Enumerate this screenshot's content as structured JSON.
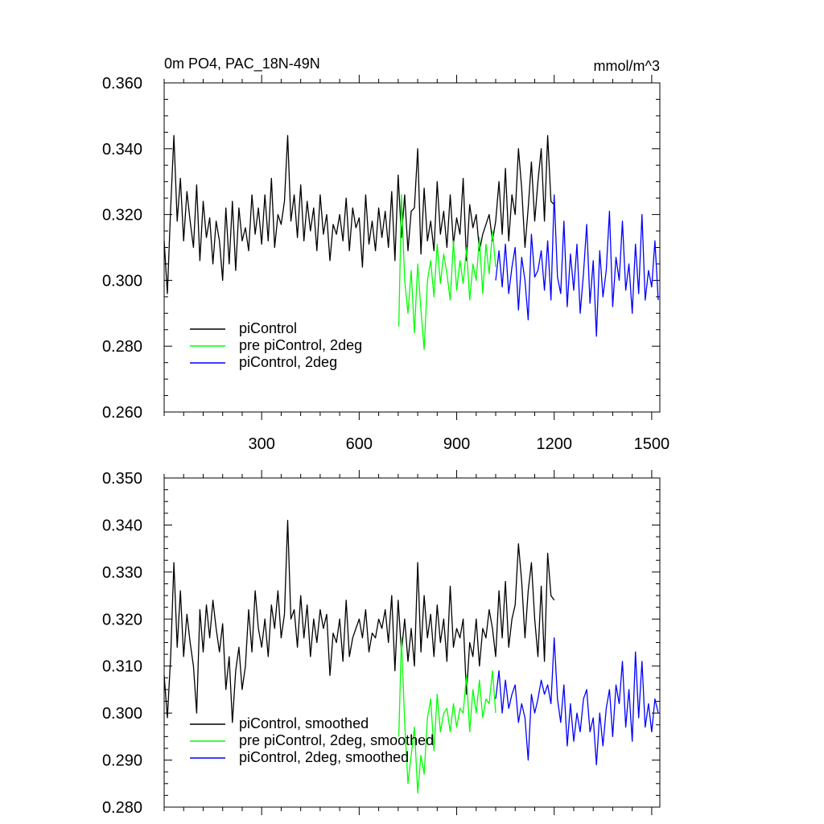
{
  "chart_data": [
    {
      "type": "line",
      "title": "0m PO4, PAC_18N-49N",
      "units": "mmol/m^3",
      "xlim": [
        0,
        1525
      ],
      "ylim": [
        0.26,
        0.36
      ],
      "xticks": [
        300,
        600,
        900,
        1200,
        1500
      ],
      "xtick_labels": [
        "300",
        "600",
        "900",
        "1200",
        "1500"
      ],
      "yticks": [
        0.26,
        0.28,
        0.3,
        0.32,
        0.34,
        0.36
      ],
      "ytick_labels": [
        "0.260",
        "0.280",
        "0.300",
        "0.320",
        "0.340",
        "0.360"
      ],
      "legend": {
        "placement": "bottom-left"
      },
      "series": [
        {
          "name": "piControl",
          "color": "#000000",
          "x": [
            0,
            10,
            20,
            30,
            40,
            50,
            60,
            70,
            80,
            90,
            100,
            110,
            120,
            130,
            140,
            150,
            160,
            170,
            180,
            190,
            200,
            210,
            220,
            230,
            240,
            250,
            260,
            270,
            280,
            290,
            300,
            310,
            320,
            330,
            340,
            350,
            360,
            370,
            380,
            390,
            400,
            410,
            420,
            430,
            440,
            450,
            460,
            470,
            480,
            490,
            500,
            510,
            520,
            530,
            540,
            550,
            560,
            570,
            580,
            590,
            600,
            610,
            620,
            630,
            640,
            650,
            660,
            670,
            680,
            690,
            700,
            710,
            720,
            730,
            740,
            750,
            760,
            770,
            780,
            790,
            800,
            810,
            820,
            830,
            840,
            850,
            860,
            870,
            880,
            890,
            900,
            910,
            920,
            930,
            940,
            950,
            960,
            970,
            980,
            990,
            1000,
            1010,
            1020,
            1030,
            1040,
            1050,
            1060,
            1070,
            1080,
            1090,
            1100,
            1110,
            1120,
            1130,
            1140,
            1150,
            1160,
            1170,
            1180,
            1190,
            1200
          ],
          "y": [
            0.312,
            0.296,
            0.322,
            0.344,
            0.318,
            0.331,
            0.312,
            0.327,
            0.318,
            0.31,
            0.329,
            0.306,
            0.324,
            0.313,
            0.319,
            0.305,
            0.318,
            0.312,
            0.3,
            0.322,
            0.305,
            0.324,
            0.303,
            0.322,
            0.312,
            0.316,
            0.309,
            0.326,
            0.314,
            0.322,
            0.311,
            0.326,
            0.312,
            0.331,
            0.31,
            0.32,
            0.317,
            0.324,
            0.344,
            0.318,
            0.326,
            0.313,
            0.329,
            0.312,
            0.324,
            0.315,
            0.322,
            0.309,
            0.326,
            0.314,
            0.32,
            0.306,
            0.317,
            0.314,
            0.32,
            0.312,
            0.325,
            0.309,
            0.322,
            0.316,
            0.319,
            0.304,
            0.326,
            0.311,
            0.318,
            0.309,
            0.322,
            0.313,
            0.321,
            0.31,
            0.327,
            0.306,
            0.332,
            0.313,
            0.326,
            0.309,
            0.321,
            0.322,
            0.34,
            0.308,
            0.328,
            0.312,
            0.318,
            0.309,
            0.33,
            0.314,
            0.321,
            0.31,
            0.326,
            0.311,
            0.319,
            0.314,
            0.331,
            0.306,
            0.323,
            0.316,
            0.32,
            0.309,
            0.314,
            0.317,
            0.32,
            0.312,
            0.318,
            0.33,
            0.314,
            0.334,
            0.312,
            0.326,
            0.32,
            0.34,
            0.328,
            0.31,
            0.322,
            0.336,
            0.318,
            0.33,
            0.34,
            0.318,
            0.344,
            0.324,
            0.323
          ]
        },
        {
          "name": "pre piControl, 2deg",
          "color": "#00ff00",
          "x": [
            722,
            730,
            740,
            750,
            760,
            770,
            780,
            790,
            800,
            810,
            820,
            830,
            840,
            850,
            860,
            870,
            880,
            890,
            900,
            910,
            920,
            930,
            940,
            950,
            960,
            970,
            980,
            990,
            1000,
            1010,
            1020
          ],
          "y": [
            0.286,
            0.326,
            0.3,
            0.29,
            0.303,
            0.284,
            0.305,
            0.291,
            0.279,
            0.3,
            0.306,
            0.295,
            0.311,
            0.299,
            0.308,
            0.302,
            0.294,
            0.312,
            0.297,
            0.306,
            0.299,
            0.31,
            0.294,
            0.305,
            0.3,
            0.313,
            0.296,
            0.311,
            0.302,
            0.315,
            0.304
          ]
        },
        {
          "name": "piControl, 2deg",
          "color": "#0000ff",
          "x": [
            1020,
            1030,
            1040,
            1050,
            1060,
            1070,
            1080,
            1090,
            1100,
            1110,
            1120,
            1130,
            1140,
            1150,
            1160,
            1170,
            1180,
            1190,
            1200,
            1210,
            1220,
            1230,
            1240,
            1250,
            1260,
            1270,
            1280,
            1290,
            1300,
            1310,
            1320,
            1330,
            1340,
            1350,
            1360,
            1370,
            1380,
            1390,
            1400,
            1410,
            1420,
            1430,
            1440,
            1450,
            1460,
            1470,
            1480,
            1490,
            1500,
            1510,
            1520
          ],
          "y": [
            0.3,
            0.309,
            0.298,
            0.311,
            0.296,
            0.304,
            0.31,
            0.291,
            0.307,
            0.3,
            0.288,
            0.314,
            0.301,
            0.303,
            0.309,
            0.297,
            0.312,
            0.294,
            0.326,
            0.301,
            0.296,
            0.318,
            0.292,
            0.308,
            0.297,
            0.311,
            0.29,
            0.302,
            0.317,
            0.293,
            0.306,
            0.283,
            0.309,
            0.295,
            0.303,
            0.321,
            0.292,
            0.307,
            0.3,
            0.318,
            0.297,
            0.305,
            0.29,
            0.311,
            0.296,
            0.32,
            0.294,
            0.303,
            0.298,
            0.312,
            0.294
          ]
        }
      ]
    },
    {
      "type": "line",
      "xlim": [
        0,
        1525
      ],
      "ylim": [
        0.28,
        0.35
      ],
      "xticks": [
        300,
        600,
        900,
        1200,
        1500
      ],
      "yticks": [
        0.28,
        0.29,
        0.3,
        0.31,
        0.32,
        0.33,
        0.34,
        0.35
      ],
      "ytick_labels": [
        "0.280",
        "0.290",
        "0.300",
        "0.310",
        "0.320",
        "0.330",
        "0.340",
        "0.350"
      ],
      "legend": {
        "placement": "bottom-left"
      },
      "series": [
        {
          "name": "piControl, smoothed",
          "color": "#000000",
          "x": [
            0,
            10,
            20,
            30,
            40,
            50,
            60,
            70,
            80,
            90,
            100,
            110,
            120,
            130,
            140,
            150,
            160,
            170,
            180,
            190,
            200,
            210,
            220,
            230,
            240,
            250,
            260,
            270,
            280,
            290,
            300,
            310,
            320,
            330,
            340,
            350,
            360,
            370,
            380,
            390,
            400,
            410,
            420,
            430,
            440,
            450,
            460,
            470,
            480,
            490,
            500,
            510,
            520,
            530,
            540,
            550,
            560,
            570,
            580,
            590,
            600,
            610,
            620,
            630,
            640,
            650,
            660,
            670,
            680,
            690,
            700,
            710,
            720,
            730,
            740,
            750,
            760,
            770,
            780,
            790,
            800,
            810,
            820,
            830,
            840,
            850,
            860,
            870,
            880,
            890,
            900,
            910,
            920,
            930,
            940,
            950,
            960,
            970,
            980,
            990,
            1000,
            1010,
            1020,
            1030,
            1040,
            1050,
            1060,
            1070,
            1080,
            1090,
            1100,
            1110,
            1120,
            1130,
            1140,
            1150,
            1160,
            1170,
            1180,
            1190,
            1200
          ],
          "y": [
            0.308,
            0.299,
            0.312,
            0.332,
            0.314,
            0.326,
            0.312,
            0.321,
            0.315,
            0.31,
            0.3,
            0.322,
            0.313,
            0.323,
            0.316,
            0.324,
            0.318,
            0.313,
            0.319,
            0.305,
            0.312,
            0.298,
            0.309,
            0.314,
            0.305,
            0.31,
            0.322,
            0.313,
            0.326,
            0.318,
            0.314,
            0.32,
            0.312,
            0.323,
            0.318,
            0.326,
            0.316,
            0.321,
            0.341,
            0.32,
            0.322,
            0.314,
            0.325,
            0.316,
            0.323,
            0.312,
            0.32,
            0.315,
            0.322,
            0.318,
            0.321,
            0.308,
            0.317,
            0.315,
            0.32,
            0.311,
            0.324,
            0.312,
            0.316,
            0.318,
            0.32,
            0.316,
            0.322,
            0.313,
            0.317,
            0.316,
            0.32,
            0.318,
            0.322,
            0.315,
            0.325,
            0.309,
            0.324,
            0.313,
            0.32,
            0.311,
            0.318,
            0.31,
            0.332,
            0.313,
            0.325,
            0.316,
            0.321,
            0.312,
            0.323,
            0.315,
            0.32,
            0.311,
            0.327,
            0.314,
            0.318,
            0.316,
            0.32,
            0.304,
            0.315,
            0.312,
            0.32,
            0.31,
            0.318,
            0.316,
            0.322,
            0.318,
            0.312,
            0.326,
            0.316,
            0.328,
            0.314,
            0.32,
            0.323,
            0.336,
            0.328,
            0.316,
            0.326,
            0.332,
            0.32,
            0.312,
            0.327,
            0.311,
            0.334,
            0.325,
            0.324
          ]
        },
        {
          "name": "pre piControl, 2deg, smoothed",
          "color": "#00ff00",
          "x": [
            722,
            730,
            740,
            750,
            760,
            770,
            780,
            790,
            800,
            810,
            820,
            830,
            840,
            850,
            860,
            870,
            880,
            890,
            900,
            910,
            920,
            930,
            940,
            950,
            960,
            970,
            980,
            990,
            1000,
            1010,
            1020
          ],
          "y": [
            0.295,
            0.316,
            0.298,
            0.285,
            0.291,
            0.297,
            0.283,
            0.291,
            0.287,
            0.299,
            0.303,
            0.292,
            0.304,
            0.296,
            0.3,
            0.301,
            0.296,
            0.302,
            0.297,
            0.301,
            0.3,
            0.308,
            0.296,
            0.305,
            0.3,
            0.307,
            0.299,
            0.303,
            0.302,
            0.309,
            0.3
          ]
        },
        {
          "name": "piControl, 2deg, smoothed",
          "color": "#0000ff",
          "x": [
            1020,
            1030,
            1040,
            1050,
            1060,
            1070,
            1080,
            1090,
            1100,
            1110,
            1120,
            1130,
            1140,
            1150,
            1160,
            1170,
            1180,
            1190,
            1200,
            1210,
            1220,
            1230,
            1240,
            1250,
            1260,
            1270,
            1280,
            1290,
            1300,
            1310,
            1320,
            1330,
            1340,
            1350,
            1360,
            1370,
            1380,
            1390,
            1400,
            1410,
            1420,
            1430,
            1440,
            1450,
            1460,
            1470,
            1480,
            1490,
            1500,
            1510,
            1520
          ],
          "y": [
            0.303,
            0.309,
            0.3,
            0.307,
            0.301,
            0.304,
            0.306,
            0.298,
            0.302,
            0.299,
            0.29,
            0.304,
            0.3,
            0.303,
            0.307,
            0.304,
            0.306,
            0.302,
            0.316,
            0.303,
            0.298,
            0.306,
            0.293,
            0.302,
            0.294,
            0.3,
            0.296,
            0.303,
            0.305,
            0.296,
            0.299,
            0.289,
            0.3,
            0.293,
            0.301,
            0.305,
            0.295,
            0.306,
            0.302,
            0.311,
            0.297,
            0.305,
            0.294,
            0.313,
            0.299,
            0.311,
            0.297,
            0.302,
            0.296,
            0.303,
            0.3
          ]
        }
      ]
    }
  ]
}
